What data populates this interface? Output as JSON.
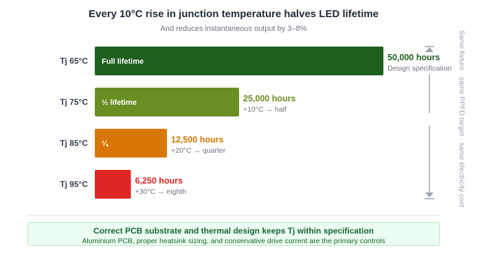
{
  "header": {
    "title": "Every 10°C rise in junction temperature halves LED lifetime",
    "subtitle": "And reduces instantaneous output by 3–8%"
  },
  "side_label": "Same fixture · same PPFD target · same electricity cost",
  "note": {
    "title": "Correct PCB substrate and thermal design keeps Tj within specification",
    "subtitle": "Aluminium PCB, proper heatsink sizing, and conservative drive current are the primary controls"
  },
  "chart_data": {
    "type": "bar",
    "orientation": "horizontal",
    "title": "Every 10°C rise in junction temperature halves LED lifetime",
    "subtitle": "And reduces instantaneous output by 3–8%",
    "categories": [
      "Tj 65°C",
      "Tj 75°C",
      "Tj 85°C",
      "Tj 95°C"
    ],
    "values": [
      50000,
      25000,
      12500,
      6250
    ],
    "xlim": [
      0,
      50000
    ],
    "grid": false,
    "bar_labels": [
      "Full lifetime",
      "½ lifetime",
      "¼",
      ""
    ],
    "value_labels": [
      "50,000 hours",
      "25,000 hours",
      "12,500 hours",
      "6,250 hours"
    ],
    "annotations": [
      "Design specification",
      "+10°C → half",
      "+20°C → quarter",
      "+30°C → eighth"
    ],
    "colors": [
      "#1e5f1e",
      "#6b8e23",
      "#d97706",
      "#dc2626"
    ]
  }
}
